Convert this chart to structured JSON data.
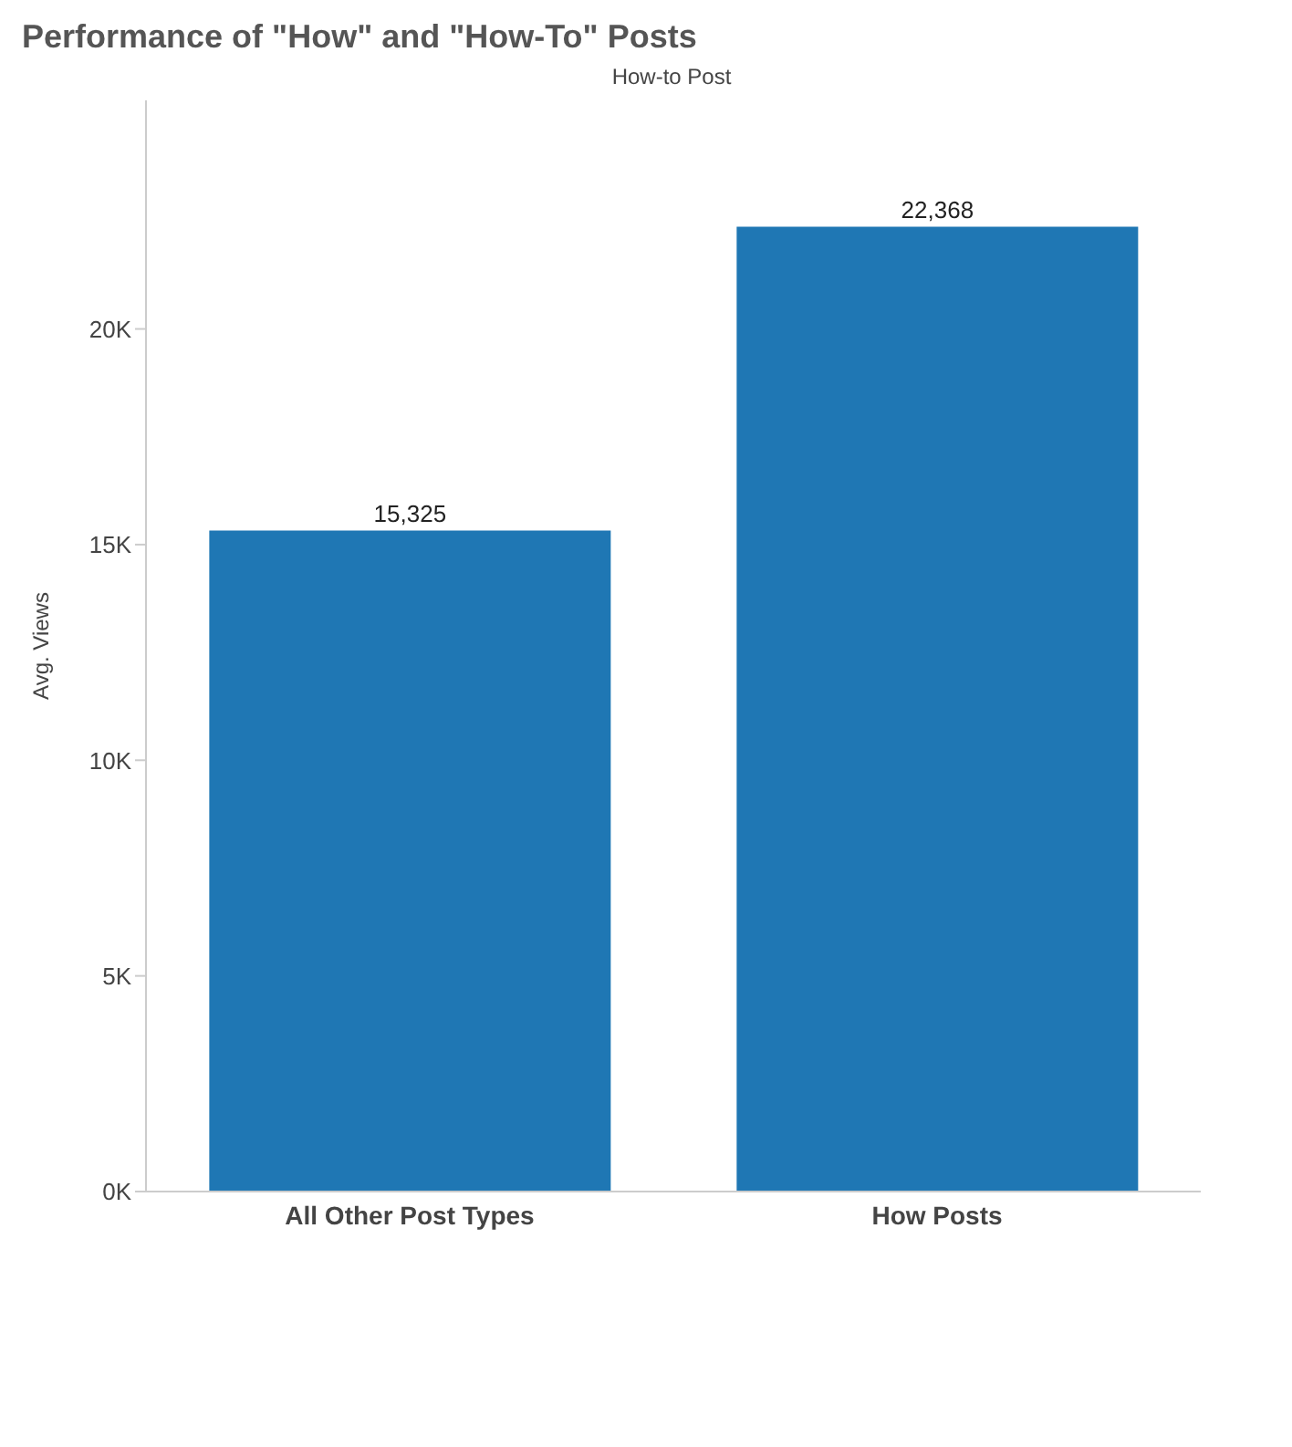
{
  "chart_data": {
    "type": "bar",
    "title": "Performance of \"How\" and \"How-To\" Posts",
    "subtitle": "How-to Post",
    "ylabel": "Avg. Views",
    "categories": [
      "All Other Post Types",
      "How Posts"
    ],
    "series": [
      {
        "color": "#1f77b4",
        "values": [
          15325,
          22368
        ],
        "value_labels": [
          "15,325",
          "22,368"
        ]
      }
    ],
    "ylim": [
      0,
      25300
    ],
    "yticks": [
      {
        "value": 0,
        "label": "0K"
      },
      {
        "value": 5000,
        "label": "5K"
      },
      {
        "value": 10000,
        "label": "10K"
      },
      {
        "value": 15000,
        "label": "15K"
      },
      {
        "value": 20000,
        "label": "20K"
      }
    ],
    "grid": false
  }
}
